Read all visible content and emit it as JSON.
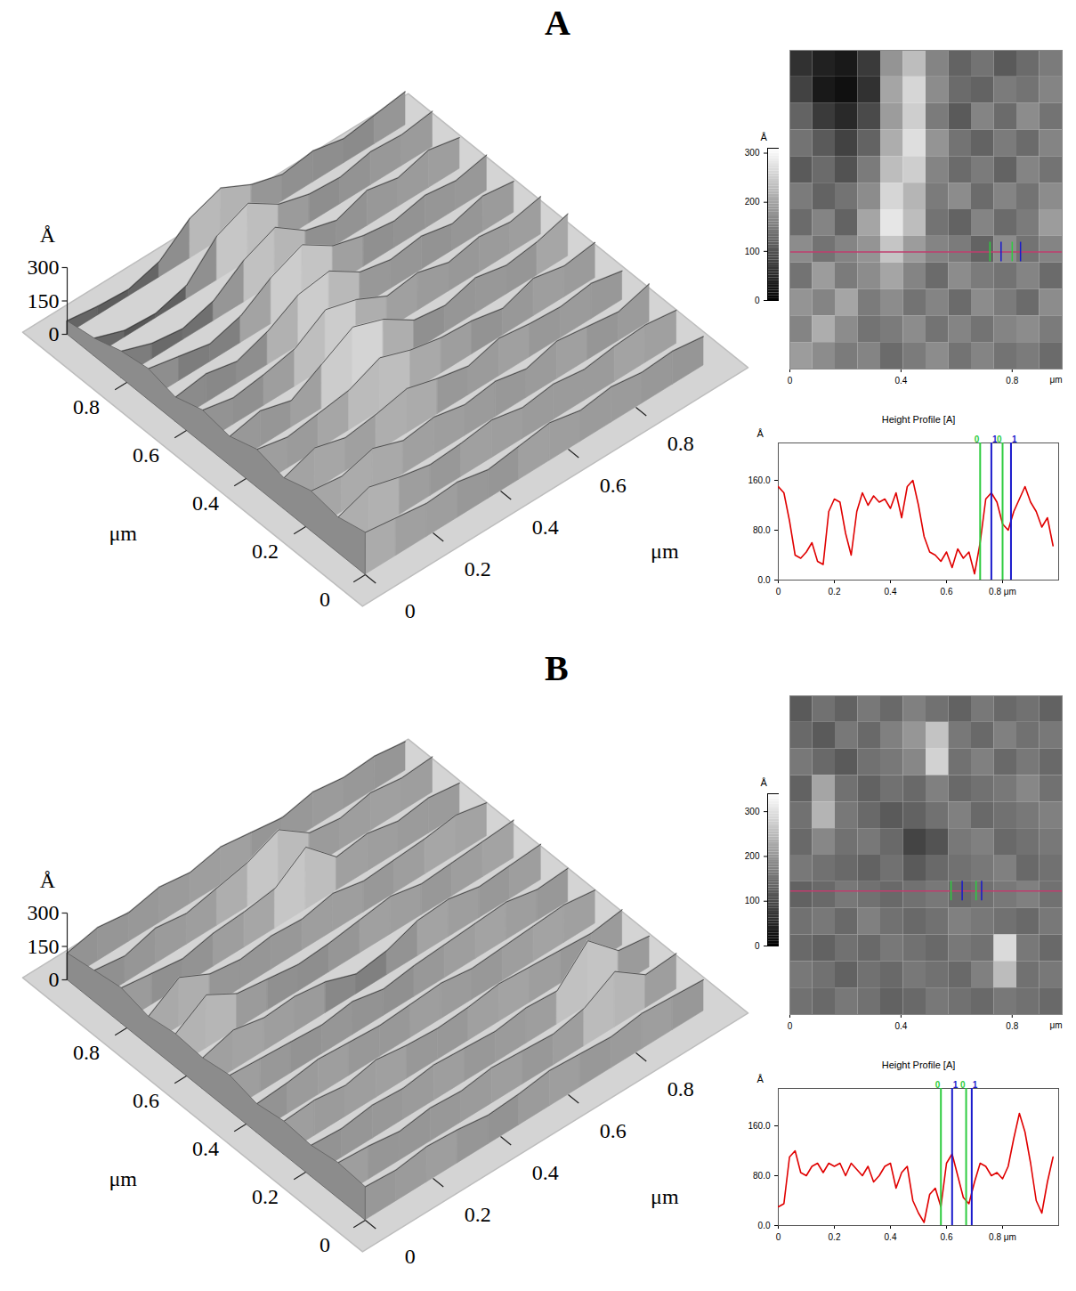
{
  "chart_data": [
    {
      "type": "afm",
      "title": "A",
      "heights": [
        [
          60,
          40,
          30,
          70,
          180,
          230,
          160,
          120,
          140,
          110,
          130,
          150
        ],
        [
          80,
          30,
          20,
          60,
          200,
          260,
          170,
          130,
          120,
          150,
          140,
          160
        ],
        [
          120,
          70,
          50,
          90,
          190,
          250,
          150,
          110,
          160,
          130,
          170,
          140
        ],
        [
          140,
          110,
          80,
          120,
          210,
          270,
          180,
          140,
          120,
          150,
          130,
          160
        ],
        [
          110,
          130,
          100,
          150,
          230,
          250,
          160,
          130,
          150,
          120,
          160,
          140
        ],
        [
          150,
          120,
          140,
          170,
          260,
          220,
          150,
          170,
          130,
          160,
          140,
          170
        ],
        [
          130,
          160,
          120,
          200,
          280,
          230,
          140,
          120,
          160,
          130,
          150,
          190
        ],
        [
          170,
          140,
          160,
          180,
          240,
          190,
          160,
          150,
          120,
          170,
          140,
          160
        ],
        [
          140,
          190,
          150,
          170,
          200,
          160,
          130,
          170,
          150,
          140,
          160,
          130
        ],
        [
          180,
          160,
          200,
          150,
          170,
          140,
          160,
          130,
          170,
          150,
          130,
          170
        ],
        [
          160,
          210,
          170,
          140,
          150,
          170,
          140,
          160,
          140,
          160,
          170,
          150
        ],
        [
          190,
          170,
          150,
          160,
          130,
          150,
          170,
          140,
          160,
          140,
          150,
          130
        ]
      ],
      "surface_3d": {
        "xlim": [
          0,
          1
        ],
        "ylim": [
          0,
          1
        ],
        "zlim": [
          0,
          300
        ],
        "xticks": [
          0,
          0.2,
          0.4,
          0.6,
          0.8
        ],
        "yticks": [
          0,
          0.2,
          0.4,
          0.6,
          0.8
        ],
        "zticks": [
          0,
          150,
          300
        ],
        "xlabel": "μm",
        "ylabel": "μm",
        "zlabel": "Å"
      },
      "map": {
        "xlim": [
          0,
          0.98
        ],
        "ylim": [
          0,
          0.98
        ],
        "xticks": [
          0,
          0.4,
          0.8
        ],
        "xlabel": "μm",
        "clim": [
          0,
          310
        ],
        "cticks": [
          0,
          100,
          200,
          300
        ],
        "clabel": "Å",
        "profile_y": 0.36,
        "profile_color": "#c03c6e"
      },
      "profile": {
        "type": "line",
        "title": "Height Profile [A]",
        "ylabel": "Å",
        "color": "#e00000",
        "x": [
          0,
          0.02,
          0.04,
          0.06,
          0.08,
          0.1,
          0.12,
          0.14,
          0.16,
          0.18,
          0.2,
          0.22,
          0.24,
          0.26,
          0.28,
          0.3,
          0.32,
          0.34,
          0.36,
          0.38,
          0.4,
          0.42,
          0.44,
          0.46,
          0.48,
          0.5,
          0.52,
          0.54,
          0.56,
          0.58,
          0.6,
          0.62,
          0.64,
          0.66,
          0.68,
          0.7,
          0.72,
          0.74,
          0.76,
          0.78,
          0.8,
          0.82,
          0.84,
          0.86,
          0.88,
          0.9,
          0.92,
          0.94,
          0.96,
          0.98
        ],
        "values": [
          150,
          140,
          95,
          40,
          35,
          45,
          60,
          30,
          25,
          110,
          130,
          125,
          75,
          40,
          110,
          140,
          120,
          135,
          125,
          130,
          115,
          140,
          100,
          150,
          160,
          120,
          70,
          45,
          40,
          30,
          45,
          20,
          50,
          35,
          45,
          10,
          60,
          130,
          140,
          125,
          90,
          80,
          110,
          130,
          150,
          125,
          110,
          85,
          100,
          55
        ],
        "xlim": [
          0,
          1
        ],
        "ylim": [
          0,
          220
        ],
        "xticks": [
          0,
          0.2,
          0.4,
          0.6,
          {
            "value": 0.8,
            "label": "0.8 μm"
          }
        ],
        "yticks": [
          {
            "value": 0,
            "label": "0.0"
          },
          {
            "value": 80,
            "label": "80.0"
          },
          {
            "value": 160,
            "label": "160.0"
          }
        ],
        "cursors": [
          {
            "x": 0.72,
            "label": "0",
            "color": "#2ecc40"
          },
          {
            "x": 0.76,
            "label": "1",
            "color": "#1a1acc"
          },
          {
            "x": 0.8,
            "label": "0",
            "color": "#2ecc40"
          },
          {
            "x": 0.83,
            "label": "1",
            "color": "#1a1acc"
          }
        ]
      }
    },
    {
      "type": "afm",
      "title": "B",
      "heights": [
        [
          120,
          150,
          130,
          160,
          140,
          170,
          150,
          130,
          160,
          140,
          150,
          130
        ],
        [
          140,
          120,
          160,
          140,
          170,
          200,
          260,
          160,
          140,
          170,
          150,
          160
        ],
        [
          160,
          140,
          120,
          150,
          160,
          180,
          280,
          150,
          170,
          140,
          160,
          140
        ],
        [
          130,
          220,
          150,
          130,
          150,
          140,
          170,
          140,
          150,
          160,
          180,
          150
        ],
        [
          150,
          240,
          160,
          140,
          120,
          130,
          150,
          170,
          140,
          150,
          160,
          170
        ],
        [
          140,
          180,
          150,
          160,
          140,
          90,
          110,
          160,
          170,
          140,
          150,
          160
        ],
        [
          160,
          150,
          140,
          130,
          150,
          120,
          140,
          150,
          160,
          170,
          140,
          150
        ],
        [
          130,
          140,
          160,
          150,
          140,
          150,
          160,
          140,
          150,
          160,
          170,
          150
        ],
        [
          150,
          160,
          140,
          170,
          150,
          140,
          150,
          170,
          160,
          150,
          140,
          160
        ],
        [
          140,
          130,
          150,
          140,
          160,
          150,
          140,
          160,
          150,
          290,
          160,
          140
        ],
        [
          160,
          150,
          130,
          150,
          140,
          160,
          150,
          140,
          170,
          250,
          150,
          160
        ],
        [
          150,
          140,
          160,
          150,
          130,
          140,
          160,
          150,
          140,
          160,
          150,
          140
        ]
      ],
      "surface_3d": {
        "xlim": [
          0,
          1
        ],
        "ylim": [
          0,
          1
        ],
        "zlim": [
          0,
          300
        ],
        "xticks": [
          0,
          0.2,
          0.4,
          0.6,
          0.8
        ],
        "yticks": [
          0,
          0.2,
          0.4,
          0.6,
          0.8
        ],
        "zticks": [
          0,
          150,
          300
        ],
        "xlabel": "μm",
        "ylabel": "μm",
        "zlabel": "Å"
      },
      "map": {
        "xlim": [
          0,
          0.98
        ],
        "ylim": [
          0,
          0.98
        ],
        "xticks": [
          0,
          0.4,
          0.8
        ],
        "xlabel": "μm",
        "clim": [
          0,
          340
        ],
        "cticks": [
          0,
          100,
          200,
          300
        ],
        "clabel": "Å",
        "profile_y": 0.38,
        "profile_color": "#c03c6e"
      },
      "profile": {
        "type": "line",
        "title": "Height Profile [A]",
        "ylabel": "Å",
        "color": "#e00000",
        "x": [
          0,
          0.02,
          0.04,
          0.06,
          0.08,
          0.1,
          0.12,
          0.14,
          0.16,
          0.18,
          0.2,
          0.22,
          0.24,
          0.26,
          0.28,
          0.3,
          0.32,
          0.34,
          0.36,
          0.38,
          0.4,
          0.42,
          0.44,
          0.46,
          0.48,
          0.5,
          0.52,
          0.54,
          0.56,
          0.58,
          0.6,
          0.62,
          0.64,
          0.66,
          0.68,
          0.7,
          0.72,
          0.74,
          0.76,
          0.78,
          0.8,
          0.82,
          0.84,
          0.86,
          0.88,
          0.9,
          0.92,
          0.94,
          0.96,
          0.98
        ],
        "values": [
          30,
          35,
          110,
          120,
          85,
          80,
          95,
          100,
          85,
          100,
          95,
          100,
          80,
          100,
          90,
          80,
          95,
          70,
          80,
          95,
          100,
          60,
          85,
          95,
          40,
          20,
          5,
          50,
          60,
          30,
          100,
          115,
          80,
          45,
          35,
          70,
          100,
          95,
          80,
          85,
          75,
          95,
          140,
          180,
          150,
          100,
          40,
          20,
          70,
          110
        ],
        "xlim": [
          0,
          1
        ],
        "ylim": [
          0,
          220
        ],
        "xticks": [
          0,
          0.2,
          0.4,
          0.6,
          {
            "value": 0.8,
            "label": "0.8 μm"
          }
        ],
        "yticks": [
          {
            "value": 0,
            "label": "0.0"
          },
          {
            "value": 80,
            "label": "80.0"
          },
          {
            "value": 160,
            "label": "160.0"
          }
        ],
        "cursors": [
          {
            "x": 0.58,
            "label": "0",
            "color": "#2ecc40"
          },
          {
            "x": 0.62,
            "label": "1",
            "color": "#1a1acc"
          },
          {
            "x": 0.67,
            "label": "0",
            "color": "#2ecc40"
          },
          {
            "x": 0.69,
            "label": "1",
            "color": "#1a1acc"
          }
        ]
      }
    }
  ]
}
